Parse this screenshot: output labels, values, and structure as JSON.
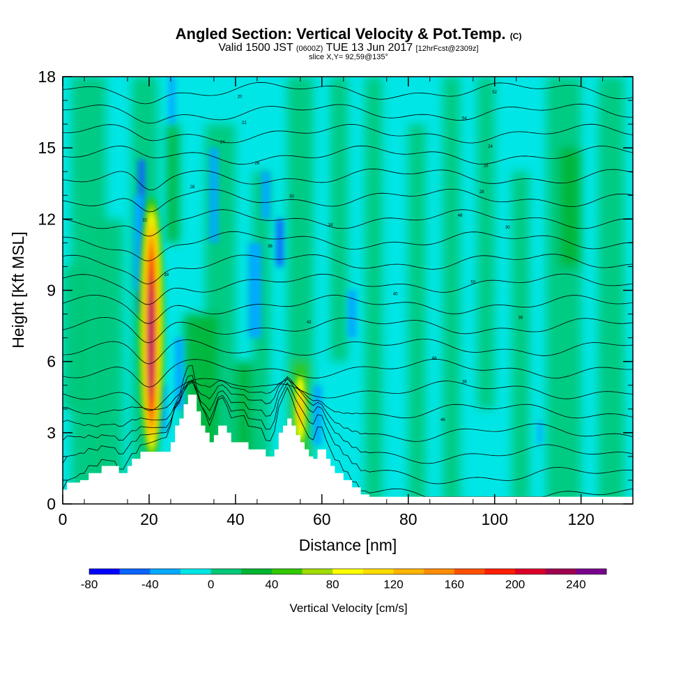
{
  "header": {
    "title": "Angled Section: Vertical Velocity & Pot.Temp.",
    "title_unit": "(C)",
    "valid_prefix": "Valid 1500 JST",
    "valid_zulu": "(0600Z)",
    "valid_date": "TUE 13 Jun 2017",
    "forecast_info": "[12hrFcst@2309z]",
    "slice_info": "slice X,Y= 92,59@135°"
  },
  "chart_data": {
    "type": "heatmap",
    "title": "Angled Section: Vertical Velocity & Pot.Temp. (C)",
    "xlabel": "Distance [nm]",
    "ylabel": "Height [Kft MSL]",
    "xlim": [
      0,
      132
    ],
    "ylim": [
      0,
      18
    ],
    "x_ticks": [
      0,
      20,
      40,
      60,
      80,
      100,
      120
    ],
    "y_ticks": [
      0,
      3,
      6,
      9,
      12,
      15,
      18
    ],
    "colorbar": {
      "label": "Vertical Velocity [cm/s]",
      "min": -80,
      "max": 260,
      "step": 20,
      "tick_values": [
        -80,
        -40,
        0,
        40,
        80,
        120,
        160,
        200,
        240
      ],
      "colors": [
        "#0000ff",
        "#0a64ff",
        "#00aaff",
        "#00e6e6",
        "#00c878",
        "#00b432",
        "#32c800",
        "#a0dc00",
        "#ffff00",
        "#ffdc00",
        "#ffb400",
        "#ff8c00",
        "#ff5000",
        "#ff1e00",
        "#dc0028",
        "#a00050",
        "#78008c"
      ]
    },
    "terrain_profile": {
      "distance": [
        0,
        1,
        2,
        3,
        4,
        5,
        6,
        7,
        8,
        9,
        10,
        11,
        12,
        13,
        14,
        15,
        16,
        17,
        18,
        19,
        20,
        21,
        22,
        23,
        24,
        25,
        26,
        27,
        28,
        29,
        30,
        31,
        32,
        33,
        34,
        35,
        36,
        37,
        38,
        39,
        40,
        41,
        42,
        43,
        44,
        45,
        46,
        47,
        48,
        49,
        50,
        51,
        52,
        53,
        54,
        55,
        56,
        57,
        58,
        59,
        60,
        61,
        62,
        63,
        64,
        65,
        66,
        67,
        68,
        69,
        70,
        71,
        72,
        132
      ],
      "height_kft": [
        0.6,
        0.9,
        0.9,
        0.9,
        1.0,
        1.0,
        1.3,
        1.3,
        1.3,
        1.6,
        1.6,
        1.6,
        1.6,
        1.3,
        1.3,
        1.6,
        1.9,
        1.9,
        2.2,
        2.2,
        2.2,
        2.2,
        2.2,
        2.2,
        2.2,
        2.6,
        3.3,
        3.6,
        4.2,
        4.6,
        4.6,
        3.9,
        3.3,
        3.0,
        2.6,
        2.9,
        3.3,
        3.3,
        3.0,
        2.6,
        2.6,
        2.6,
        2.6,
        2.3,
        2.3,
        2.3,
        2.3,
        2.0,
        2.0,
        2.3,
        3.0,
        3.3,
        3.6,
        3.3,
        2.9,
        2.6,
        2.3,
        2.0,
        1.9,
        2.3,
        2.3,
        1.9,
        1.6,
        1.3,
        1.3,
        1.0,
        1.0,
        0.7,
        0.7,
        0.4,
        0.4,
        0.3,
        0.3,
        0.3
      ]
    },
    "updraft_core": {
      "description": "maximum upward velocity plume",
      "distance_nm": 20,
      "height_range_kft": [
        2.5,
        13.5
      ],
      "peak_cm_s": 240
    },
    "theta_contours": {
      "label_values": [
        "20",
        "22",
        "24",
        "26",
        "28",
        "30",
        "32",
        "34",
        "36",
        "38",
        "40",
        "42",
        "44",
        "46",
        "48",
        "50",
        "52",
        "54"
      ],
      "lowest_value": 20,
      "interval": 2,
      "base_height_kft": 0.3,
      "spacing_kft": 0.9
    }
  }
}
